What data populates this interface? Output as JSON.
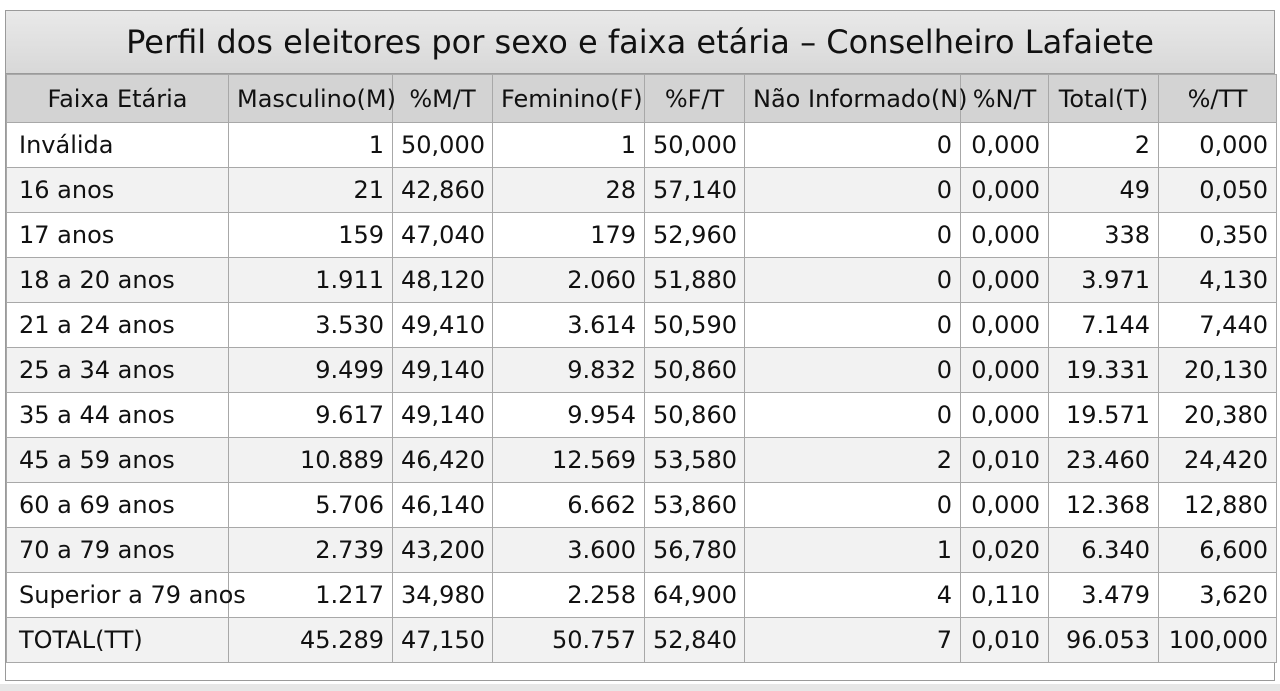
{
  "title": "Perfil dos eleitores por sexo e faixa etária – Conselheiro Lafaiete",
  "columns": [
    "Faixa Etária",
    "Masculino(M)",
    "%M/T",
    "Feminino(F)",
    "%F/T",
    "Não Informado(N)",
    "%N/T",
    "Total(T)",
    "%/TT"
  ],
  "rows": [
    [
      "Inválida",
      "1",
      "50,000",
      "1",
      "50,000",
      "0",
      "0,000",
      "2",
      "0,000"
    ],
    [
      "16 anos",
      "21",
      "42,860",
      "28",
      "57,140",
      "0",
      "0,000",
      "49",
      "0,050"
    ],
    [
      "17 anos",
      "159",
      "47,040",
      "179",
      "52,960",
      "0",
      "0,000",
      "338",
      "0,350"
    ],
    [
      "18 a 20 anos",
      "1.911",
      "48,120",
      "2.060",
      "51,880",
      "0",
      "0,000",
      "3.971",
      "4,130"
    ],
    [
      "21 a 24 anos",
      "3.530",
      "49,410",
      "3.614",
      "50,590",
      "0",
      "0,000",
      "7.144",
      "7,440"
    ],
    [
      "25 a 34 anos",
      "9.499",
      "49,140",
      "9.832",
      "50,860",
      "0",
      "0,000",
      "19.331",
      "20,130"
    ],
    [
      "35 a 44 anos",
      "9.617",
      "49,140",
      "9.954",
      "50,860",
      "0",
      "0,000",
      "19.571",
      "20,380"
    ],
    [
      "45 a 59 anos",
      "10.889",
      "46,420",
      "12.569",
      "53,580",
      "2",
      "0,010",
      "23.460",
      "24,420"
    ],
    [
      "60 a 69 anos",
      "5.706",
      "46,140",
      "6.662",
      "53,860",
      "0",
      "0,000",
      "12.368",
      "12,880"
    ],
    [
      "70 a 79 anos",
      "2.739",
      "43,200",
      "3.600",
      "56,780",
      "1",
      "0,020",
      "6.340",
      "6,600"
    ],
    [
      "Superior a 79 anos",
      "1.217",
      "34,980",
      "2.258",
      "64,900",
      "4",
      "0,110",
      "3.479",
      "3,620"
    ],
    [
      "TOTAL(TT)",
      "45.289",
      "47,150",
      "50.757",
      "52,840",
      "7",
      "0,010",
      "96.053",
      "100,000"
    ]
  ]
}
